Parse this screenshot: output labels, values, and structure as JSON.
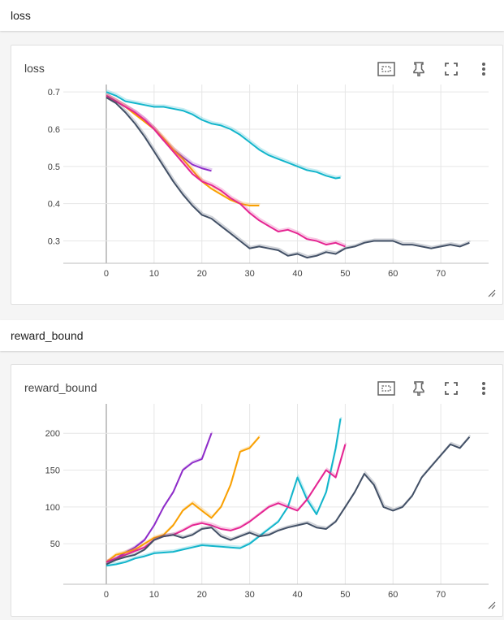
{
  "sections": [
    {
      "title": "loss"
    },
    {
      "title": "reward_bound"
    }
  ],
  "charts": [
    {
      "title": "loss"
    },
    {
      "title": "reward_bound"
    }
  ],
  "icons": [
    "fit-domain-icon",
    "pin-icon",
    "fullscreen-icon",
    "more-vert-icon",
    "resize-icon"
  ],
  "colors": {
    "cyan": "#12b5cb",
    "purple": "#8e2cc9",
    "orange": "#f9a002",
    "magenta": "#e52592",
    "slate": "#425066",
    "grid": "#e6e6e6",
    "axis": "#9e9e9e"
  },
  "chart_data": [
    {
      "type": "line",
      "title": "loss",
      "xlabel": "",
      "ylabel": "",
      "xlim": [
        -9,
        80
      ],
      "ylim": [
        0.24,
        0.72
      ],
      "x_ticks": [
        0,
        10,
        20,
        30,
        40,
        50,
        60,
        70
      ],
      "y_ticks": [
        0.3,
        0.4,
        0.5,
        0.6,
        0.7
      ],
      "y_tick_labels": [
        "0.3",
        "0.4",
        "0.5",
        "0.6",
        "0.7"
      ],
      "grid": true,
      "series": [
        {
          "color": "#12b5cb",
          "x": [
            0,
            2,
            4,
            6,
            8,
            10,
            12,
            14,
            16,
            18,
            20,
            22,
            24,
            26,
            28,
            30,
            32,
            34,
            36,
            38,
            40,
            42,
            44,
            46,
            48,
            49
          ],
          "y": [
            0.7,
            0.69,
            0.675,
            0.67,
            0.665,
            0.66,
            0.66,
            0.655,
            0.65,
            0.64,
            0.625,
            0.615,
            0.61,
            0.6,
            0.585,
            0.565,
            0.545,
            0.53,
            0.52,
            0.51,
            0.5,
            0.49,
            0.485,
            0.475,
            0.468,
            0.47
          ]
        },
        {
          "color": "#8e2cc9",
          "x": [
            0,
            2,
            4,
            6,
            8,
            10,
            12,
            14,
            16,
            18,
            20,
            22
          ],
          "y": [
            0.69,
            0.675,
            0.66,
            0.645,
            0.625,
            0.6,
            0.57,
            0.545,
            0.525,
            0.505,
            0.495,
            0.488
          ]
        },
        {
          "color": "#f9a002",
          "x": [
            0,
            2,
            4,
            6,
            8,
            10,
            12,
            14,
            16,
            18,
            20,
            22,
            24,
            26,
            28,
            30,
            32
          ],
          "y": [
            0.69,
            0.675,
            0.66,
            0.64,
            0.62,
            0.6,
            0.575,
            0.545,
            0.52,
            0.49,
            0.46,
            0.44,
            0.425,
            0.41,
            0.4,
            0.395,
            0.395
          ]
        },
        {
          "color": "#e52592",
          "x": [
            0,
            2,
            4,
            6,
            8,
            10,
            12,
            14,
            16,
            18,
            20,
            22,
            24,
            26,
            28,
            30,
            32,
            34,
            36,
            38,
            40,
            42,
            44,
            46,
            48,
            50
          ],
          "y": [
            0.69,
            0.675,
            0.66,
            0.645,
            0.625,
            0.6,
            0.57,
            0.54,
            0.51,
            0.48,
            0.46,
            0.45,
            0.435,
            0.415,
            0.4,
            0.375,
            0.355,
            0.34,
            0.325,
            0.33,
            0.32,
            0.305,
            0.3,
            0.29,
            0.295,
            0.285
          ]
        },
        {
          "color": "#425066",
          "x": [
            0,
            2,
            4,
            6,
            8,
            10,
            12,
            14,
            16,
            18,
            20,
            22,
            24,
            26,
            28,
            30,
            32,
            34,
            36,
            38,
            40,
            42,
            44,
            46,
            48,
            50,
            52,
            54,
            56,
            58,
            60,
            62,
            64,
            66,
            68,
            70,
            72,
            74,
            76
          ],
          "y": [
            0.685,
            0.67,
            0.645,
            0.615,
            0.58,
            0.54,
            0.5,
            0.46,
            0.425,
            0.395,
            0.37,
            0.36,
            0.34,
            0.32,
            0.3,
            0.28,
            0.285,
            0.28,
            0.275,
            0.26,
            0.265,
            0.255,
            0.26,
            0.27,
            0.265,
            0.28,
            0.285,
            0.295,
            0.3,
            0.3,
            0.3,
            0.29,
            0.29,
            0.285,
            0.28,
            0.285,
            0.29,
            0.285,
            0.295
          ]
        }
      ]
    },
    {
      "type": "line",
      "title": "reward_bound",
      "xlabel": "",
      "ylabel": "",
      "xlim": [
        -9,
        80
      ],
      "ylim": [
        -5,
        240
      ],
      "x_ticks": [
        0,
        10,
        20,
        30,
        40,
        50,
        60,
        70
      ],
      "y_ticks": [
        50,
        100,
        150,
        200
      ],
      "y_tick_labels": [
        "50",
        "100",
        "150",
        "200"
      ],
      "grid": true,
      "series": [
        {
          "color": "#12b5cb",
          "x": [
            0,
            2,
            4,
            6,
            8,
            10,
            12,
            14,
            16,
            18,
            20,
            22,
            24,
            26,
            28,
            30,
            32,
            34,
            36,
            38,
            40,
            42,
            44,
            46,
            48,
            49
          ],
          "y": [
            20,
            22,
            25,
            30,
            33,
            37,
            38,
            39,
            42,
            45,
            48,
            47,
            46,
            45,
            44,
            50,
            60,
            70,
            80,
            100,
            140,
            110,
            90,
            120,
            180,
            220
          ]
        },
        {
          "color": "#8e2cc9",
          "x": [
            0,
            2,
            4,
            6,
            8,
            10,
            12,
            14,
            16,
            18,
            20,
            22
          ],
          "y": [
            25,
            30,
            38,
            45,
            55,
            75,
            100,
            120,
            150,
            160,
            165,
            200
          ]
        },
        {
          "color": "#f9a002",
          "x": [
            0,
            2,
            4,
            6,
            8,
            10,
            12,
            14,
            16,
            18,
            20,
            22,
            24,
            26,
            28,
            30,
            32
          ],
          "y": [
            25,
            35,
            38,
            42,
            50,
            58,
            62,
            75,
            95,
            105,
            95,
            85,
            100,
            130,
            175,
            180,
            195
          ]
        },
        {
          "color": "#e52592",
          "x": [
            0,
            2,
            4,
            6,
            8,
            10,
            12,
            14,
            16,
            18,
            20,
            22,
            24,
            26,
            28,
            30,
            32,
            34,
            36,
            38,
            40,
            42,
            44,
            46,
            48,
            50
          ],
          "y": [
            25,
            30,
            35,
            40,
            45,
            55,
            60,
            62,
            68,
            75,
            78,
            75,
            70,
            68,
            72,
            80,
            90,
            100,
            105,
            100,
            95,
            110,
            130,
            150,
            140,
            185
          ]
        },
        {
          "color": "#425066",
          "x": [
            0,
            2,
            4,
            6,
            8,
            10,
            12,
            14,
            16,
            18,
            20,
            22,
            24,
            26,
            28,
            30,
            32,
            34,
            36,
            38,
            40,
            42,
            44,
            46,
            48,
            50,
            52,
            54,
            56,
            58,
            60,
            62,
            64,
            66,
            68,
            70,
            72,
            74,
            76
          ],
          "y": [
            22,
            28,
            32,
            35,
            42,
            55,
            60,
            62,
            58,
            62,
            70,
            72,
            60,
            55,
            60,
            65,
            60,
            62,
            68,
            72,
            75,
            78,
            72,
            70,
            80,
            100,
            120,
            145,
            130,
            100,
            95,
            100,
            115,
            140,
            155,
            170,
            185,
            180,
            195
          ]
        }
      ]
    }
  ]
}
